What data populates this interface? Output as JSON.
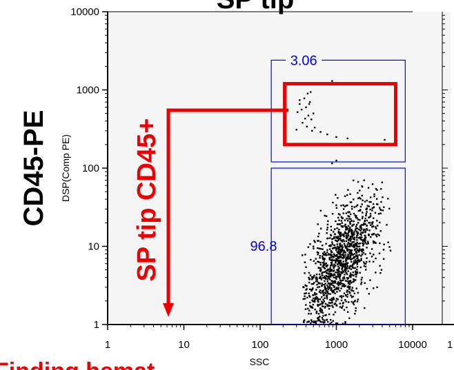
{
  "chart_data": {
    "type": "scatter",
    "title": "SP tip",
    "side_label": "CD45-PE",
    "xlabel": "SSC",
    "ylabel": "DSP(Comp PE)",
    "x_scale": "log",
    "y_scale": "log",
    "xlim": [
      1,
      10000
    ],
    "ylim": [
      1,
      10000
    ],
    "x_tick_labels": [
      "1",
      "10",
      "100",
      "1000",
      "10000"
    ],
    "y_tick_labels": [
      "10000",
      "1000",
      "100",
      "10",
      "1"
    ],
    "right_panel_tick": "1",
    "gates": [
      {
        "name": "upper",
        "label": "3.06",
        "x_range": [
          140,
          8000
        ],
        "y_range": [
          120,
          2400
        ],
        "color": "#0000ee"
      },
      {
        "name": "lower",
        "label": "96.8",
        "x_range": [
          140,
          8000
        ],
        "y_range": [
          1,
          100
        ],
        "color": "#0000ee"
      }
    ],
    "highlight_gate": {
      "x_range": [
        210,
        6000
      ],
      "y_range": [
        200,
        1200
      ],
      "color": "#ee0000"
    },
    "red_annotation": "SP tip CD45+",
    "bottom_red_text": "Finding hemat",
    "upper_points": [
      [
        420,
        900
      ],
      [
        460,
        940
      ],
      [
        380,
        780
      ],
      [
        330,
        660
      ],
      [
        450,
        700
      ],
      [
        400,
        600
      ],
      [
        350,
        560
      ],
      [
        310,
        520
      ],
      [
        500,
        500
      ],
      [
        430,
        470
      ],
      [
        470,
        420
      ],
      [
        360,
        380
      ],
      [
        410,
        340
      ],
      [
        520,
        330
      ],
      [
        300,
        310
      ],
      [
        480,
        300
      ],
      [
        620,
        290
      ],
      [
        760,
        270
      ],
      [
        1000,
        250
      ],
      [
        1400,
        240
      ],
      [
        4300,
        230
      ],
      [
        880,
        1300
      ],
      [
        390,
        430
      ],
      [
        440,
        660
      ],
      [
        330,
        740
      ]
    ],
    "lower_points_summary": "Dense cluster near SSC 300–5000, DSP(Comp PE) 1–70",
    "colors": {
      "data": "#000000",
      "gate": "#0000ee",
      "highlight": "#ee0000",
      "plot_bg": "#f5f5f5"
    }
  }
}
